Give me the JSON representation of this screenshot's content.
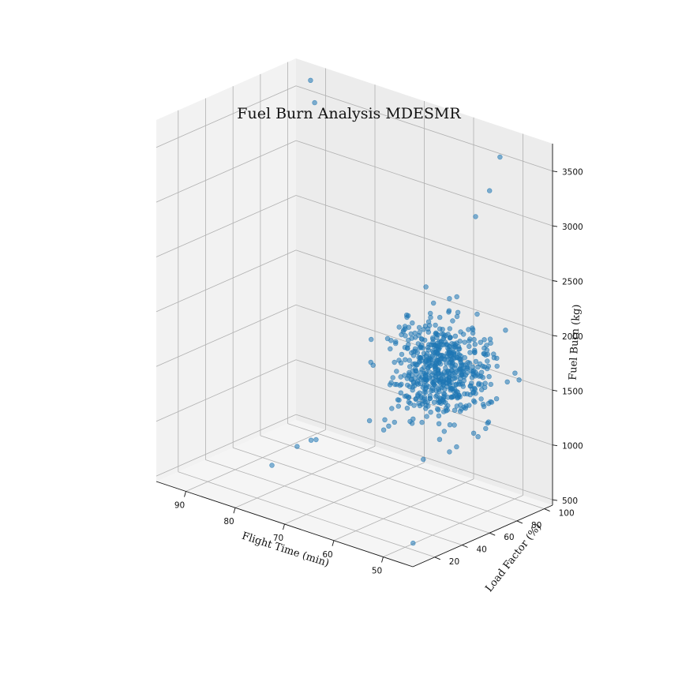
{
  "chart_data": {
    "type": "scatter",
    "title": "Fuel Burn Analysis MDESMR",
    "xlabel": "Flight Time (min)",
    "ylabel": "Load Factor (%)",
    "zlabel": "Fuel Burn (kg)",
    "x_ticks": [
      50,
      60,
      70,
      80,
      90
    ],
    "y_ticks": [
      20,
      40,
      60,
      80,
      100
    ],
    "z_ticks": [
      500,
      1000,
      1500,
      2000,
      2500,
      3000,
      3500
    ],
    "xlim": [
      44,
      96
    ],
    "ylim": [
      4,
      106
    ],
    "zlim": [
      450,
      3750
    ],
    "grid": true,
    "projection": "3d",
    "colors": {
      "marker": "#1f77b4",
      "pane_back": "#ececec",
      "pane_left": "#f2f2f2",
      "pane_floor": "#f5f5f5",
      "grid": "#b0b0b0"
    },
    "outliers": [
      {
        "x": 90,
        "y": 95,
        "z": 3700
      },
      {
        "x": 90,
        "y": 98,
        "z": 3480
      },
      {
        "x": 48,
        "y": 82,
        "z": 3700
      },
      {
        "x": 49,
        "y": 78,
        "z": 3400
      },
      {
        "x": 51,
        "y": 75,
        "z": 3150
      },
      {
        "x": 47,
        "y": 15,
        "z": 560
      },
      {
        "x": 60,
        "y": 30,
        "z": 1400
      },
      {
        "x": 65,
        "y": 62,
        "z": 1100
      },
      {
        "x": 66,
        "y": 62,
        "z": 1050
      },
      {
        "x": 75,
        "y": 45,
        "z": 920
      },
      {
        "x": 76,
        "y": 45,
        "z": 900
      },
      {
        "x": 78,
        "y": 42,
        "z": 830
      },
      {
        "x": 82,
        "y": 38,
        "z": 620
      }
    ],
    "cluster": {
      "point_count": 600,
      "x_mean": 50,
      "x_sd": 4,
      "y_mean": 48,
      "y_sd": 11,
      "z_mean": 1900,
      "z_sd": 220
    }
  }
}
